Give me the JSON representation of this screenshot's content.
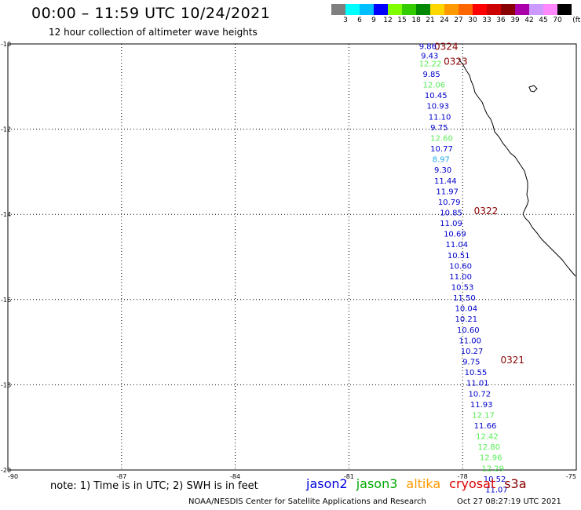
{
  "header": {
    "title": "00:00 – 11:59 UTC 10/24/2021",
    "subtitle": "12 hour collection of altimeter wave heights"
  },
  "colorbar": {
    "colors": [
      "#7f7f7f",
      "#00ffff",
      "#00bfff",
      "#0000ff",
      "#7fff00",
      "#33cc00",
      "#008800",
      "#ffd700",
      "#ff9900",
      "#ff6600",
      "#ff0000",
      "#cc0000",
      "#880000",
      "#aa00aa",
      "#cc99ff",
      "#ff88ff",
      "#000000"
    ],
    "labels": [
      "3",
      "6",
      "9",
      "12",
      "15",
      "18",
      "21",
      "24",
      "27",
      "30",
      "33",
      "36",
      "39",
      "42",
      "45",
      "70",
      "(ft)"
    ]
  },
  "map": {
    "lon_ticks": [
      "-90",
      "-87",
      "-84",
      "-81",
      "-78",
      "-75"
    ],
    "lat_ticks": [
      "-10",
      "-12",
      "-14",
      "-16",
      "-18",
      "-20"
    ],
    "pass_labels": [
      {
        "text": "0324",
        "lon": -78.75,
        "lat": -10.05
      },
      {
        "text": "0323",
        "lon": -78.5,
        "lat": -10.4
      },
      {
        "text": "0322",
        "lon": -77.7,
        "lat": -13.9
      },
      {
        "text": "0321",
        "lon": -77.0,
        "lat": -17.4
      }
    ],
    "wave_heights": [
      {
        "v": "9.86",
        "sat": "jason2",
        "lon": -79.15,
        "lat": -10.05
      },
      {
        "v": "9.43",
        "sat": "jason2",
        "lon": -79.1,
        "lat": -10.27
      },
      {
        "v": "12.22",
        "sat": "jason3",
        "lon": -79.15,
        "lat": -10.45
      },
      {
        "v": "9.85",
        "sat": "jason2",
        "lon": -79.05,
        "lat": -10.7
      },
      {
        "v": "12.06",
        "sat": "jason3",
        "lon": -79.05,
        "lat": -10.95
      },
      {
        "v": "10.45",
        "sat": "jason2",
        "lon": -79.0,
        "lat": -11.2
      },
      {
        "v": "10.93",
        "sat": "jason2",
        "lon": -78.95,
        "lat": -11.45
      },
      {
        "v": "11.10",
        "sat": "jason2",
        "lon": -78.9,
        "lat": -11.7
      },
      {
        "v": "9.75",
        "sat": "jason2",
        "lon": -78.85,
        "lat": -11.95
      },
      {
        "v": "12.60",
        "sat": "jason3",
        "lon": -78.85,
        "lat": -12.2
      },
      {
        "v": "10.77",
        "sat": "jason2",
        "lon": -78.85,
        "lat": -12.45
      },
      {
        "v": "8.97",
        "sat": "jason3_cyan",
        "lon": -78.8,
        "lat": -12.7
      },
      {
        "v": "9.30",
        "sat": "jason2",
        "lon": -78.75,
        "lat": -12.95
      },
      {
        "v": "11.44",
        "sat": "jason2",
        "lon": -78.75,
        "lat": -13.2
      },
      {
        "v": "11.97",
        "sat": "jason2",
        "lon": -78.7,
        "lat": -13.45
      },
      {
        "v": "10.79",
        "sat": "jason2",
        "lon": -78.65,
        "lat": -13.7
      },
      {
        "v": "10.85",
        "sat": "jason2",
        "lon": -78.6,
        "lat": -13.95
      },
      {
        "v": "11.09",
        "sat": "jason2",
        "lon": -78.6,
        "lat": -14.2
      },
      {
        "v": "10.69",
        "sat": "jason2",
        "lon": -78.5,
        "lat": -14.45
      },
      {
        "v": "11.04",
        "sat": "jason2",
        "lon": -78.45,
        "lat": -14.7
      },
      {
        "v": "10.51",
        "sat": "jason2",
        "lon": -78.4,
        "lat": -14.95
      },
      {
        "v": "10.60",
        "sat": "jason2",
        "lon": -78.35,
        "lat": -15.2
      },
      {
        "v": "11.00",
        "sat": "jason2",
        "lon": -78.35,
        "lat": -15.45
      },
      {
        "v": "10.53",
        "sat": "jason2",
        "lon": -78.3,
        "lat": -15.7
      },
      {
        "v": "11.50",
        "sat": "jason2",
        "lon": -78.25,
        "lat": -15.95
      },
      {
        "v": "10.04",
        "sat": "jason2",
        "lon": -78.2,
        "lat": -16.2
      },
      {
        "v": "10.21",
        "sat": "jason2",
        "lon": -78.2,
        "lat": -16.45
      },
      {
        "v": "10.60",
        "sat": "jason2",
        "lon": -78.15,
        "lat": -16.7
      },
      {
        "v": "11.00",
        "sat": "jason2",
        "lon": -78.1,
        "lat": -16.95
      },
      {
        "v": "10.27",
        "sat": "jason2",
        "lon": -78.05,
        "lat": -17.2
      },
      {
        "v": "9.75",
        "sat": "jason2",
        "lon": -78.0,
        "lat": -17.45
      },
      {
        "v": "10.55",
        "sat": "jason2",
        "lon": -77.95,
        "lat": -17.7
      },
      {
        "v": "11.01",
        "sat": "jason2",
        "lon": -77.9,
        "lat": -17.95
      },
      {
        "v": "10.72",
        "sat": "jason2",
        "lon": -77.85,
        "lat": -18.2
      },
      {
        "v": "11.93",
        "sat": "jason2",
        "lon": -77.8,
        "lat": -18.45
      },
      {
        "v": "12.17",
        "sat": "jason3",
        "lon": -77.75,
        "lat": -18.7
      },
      {
        "v": "11.66",
        "sat": "jason2",
        "lon": -77.7,
        "lat": -18.95
      },
      {
        "v": "12.42",
        "sat": "jason3",
        "lon": -77.65,
        "lat": -19.2
      },
      {
        "v": "12.80",
        "sat": "jason3",
        "lon": -77.6,
        "lat": -19.45
      },
      {
        "v": "12.96",
        "sat": "jason3",
        "lon": -77.55,
        "lat": -19.7
      },
      {
        "v": "12.29",
        "sat": "jason3",
        "lon": -77.5,
        "lat": -19.95
      },
      {
        "v": "10.52",
        "sat": "jason2",
        "lon": -77.45,
        "lat": -20.2
      },
      {
        "v": "11.07",
        "sat": "jason2",
        "lon": -77.4,
        "lat": -20.45
      }
    ]
  },
  "footer": {
    "note": "note: 1) Time is in UTC; 2) SWH is in feet",
    "legend": [
      {
        "label": "jason2",
        "color": "#0000dd"
      },
      {
        "label": "jason3",
        "color": "#00aa00"
      },
      {
        "label": "altika",
        "color": "#ff9900"
      },
      {
        "label": "cryosat",
        "color": "#dd0000"
      },
      {
        "label": "s3a",
        "color": "#880000"
      }
    ],
    "credit": "NOAA/NESDIS Center for Satellite Applications and Research",
    "timestamp": "Oct 27 08:27:19 UTC 2021"
  },
  "colors": {
    "jason2": "#0000cc",
    "jason3": "#55ee55",
    "jason3_cyan": "#22aaee",
    "pass_label": "#880000"
  }
}
